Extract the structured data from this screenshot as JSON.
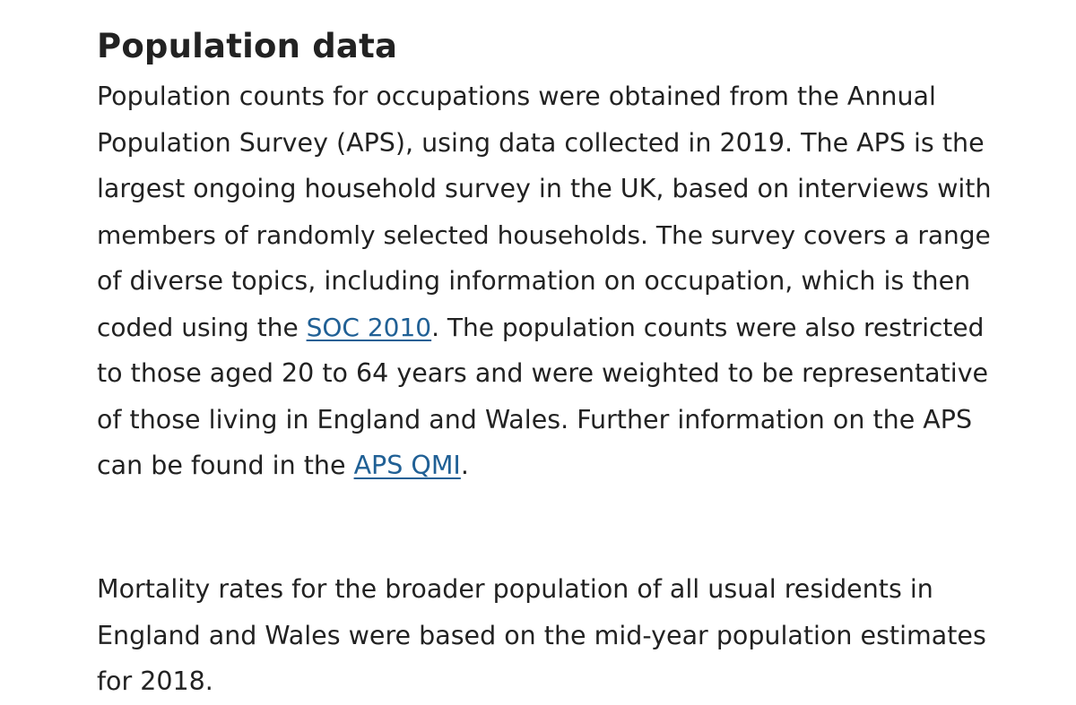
{
  "section": {
    "title": "Population data"
  },
  "paragraph1": {
    "lines": [
      "Population counts for occupations were obtained from the Annual",
      "Population Survey (APS), using data collected in 2019. The APS is the",
      "largest ongoing household survey in the UK, based on interviews with",
      "members of randomly selected households. The survey covers a range",
      "of diverse topics, including information on occupation, which is then"
    ],
    "line6_before": "coded using the ",
    "link_soc": "SOC 2010",
    "line6_after": ". The population counts were also restricted",
    "line7": "to those aged 20 to 64 years and were weighted to be representative",
    "line8": "of those living in England and Wales. Further information on the APS",
    "line9_before": "can be found in the ",
    "link_qmi": "APS QMI",
    "line9_after": "."
  },
  "paragraph2": {
    "lines": [
      "Mortality rates for the broader population of all usual residents in",
      "England and Wales were based on the mid-year population estimates",
      "for 2018."
    ]
  },
  "colors": {
    "text": "#222222",
    "link": "#206095",
    "background": "#ffffff"
  }
}
